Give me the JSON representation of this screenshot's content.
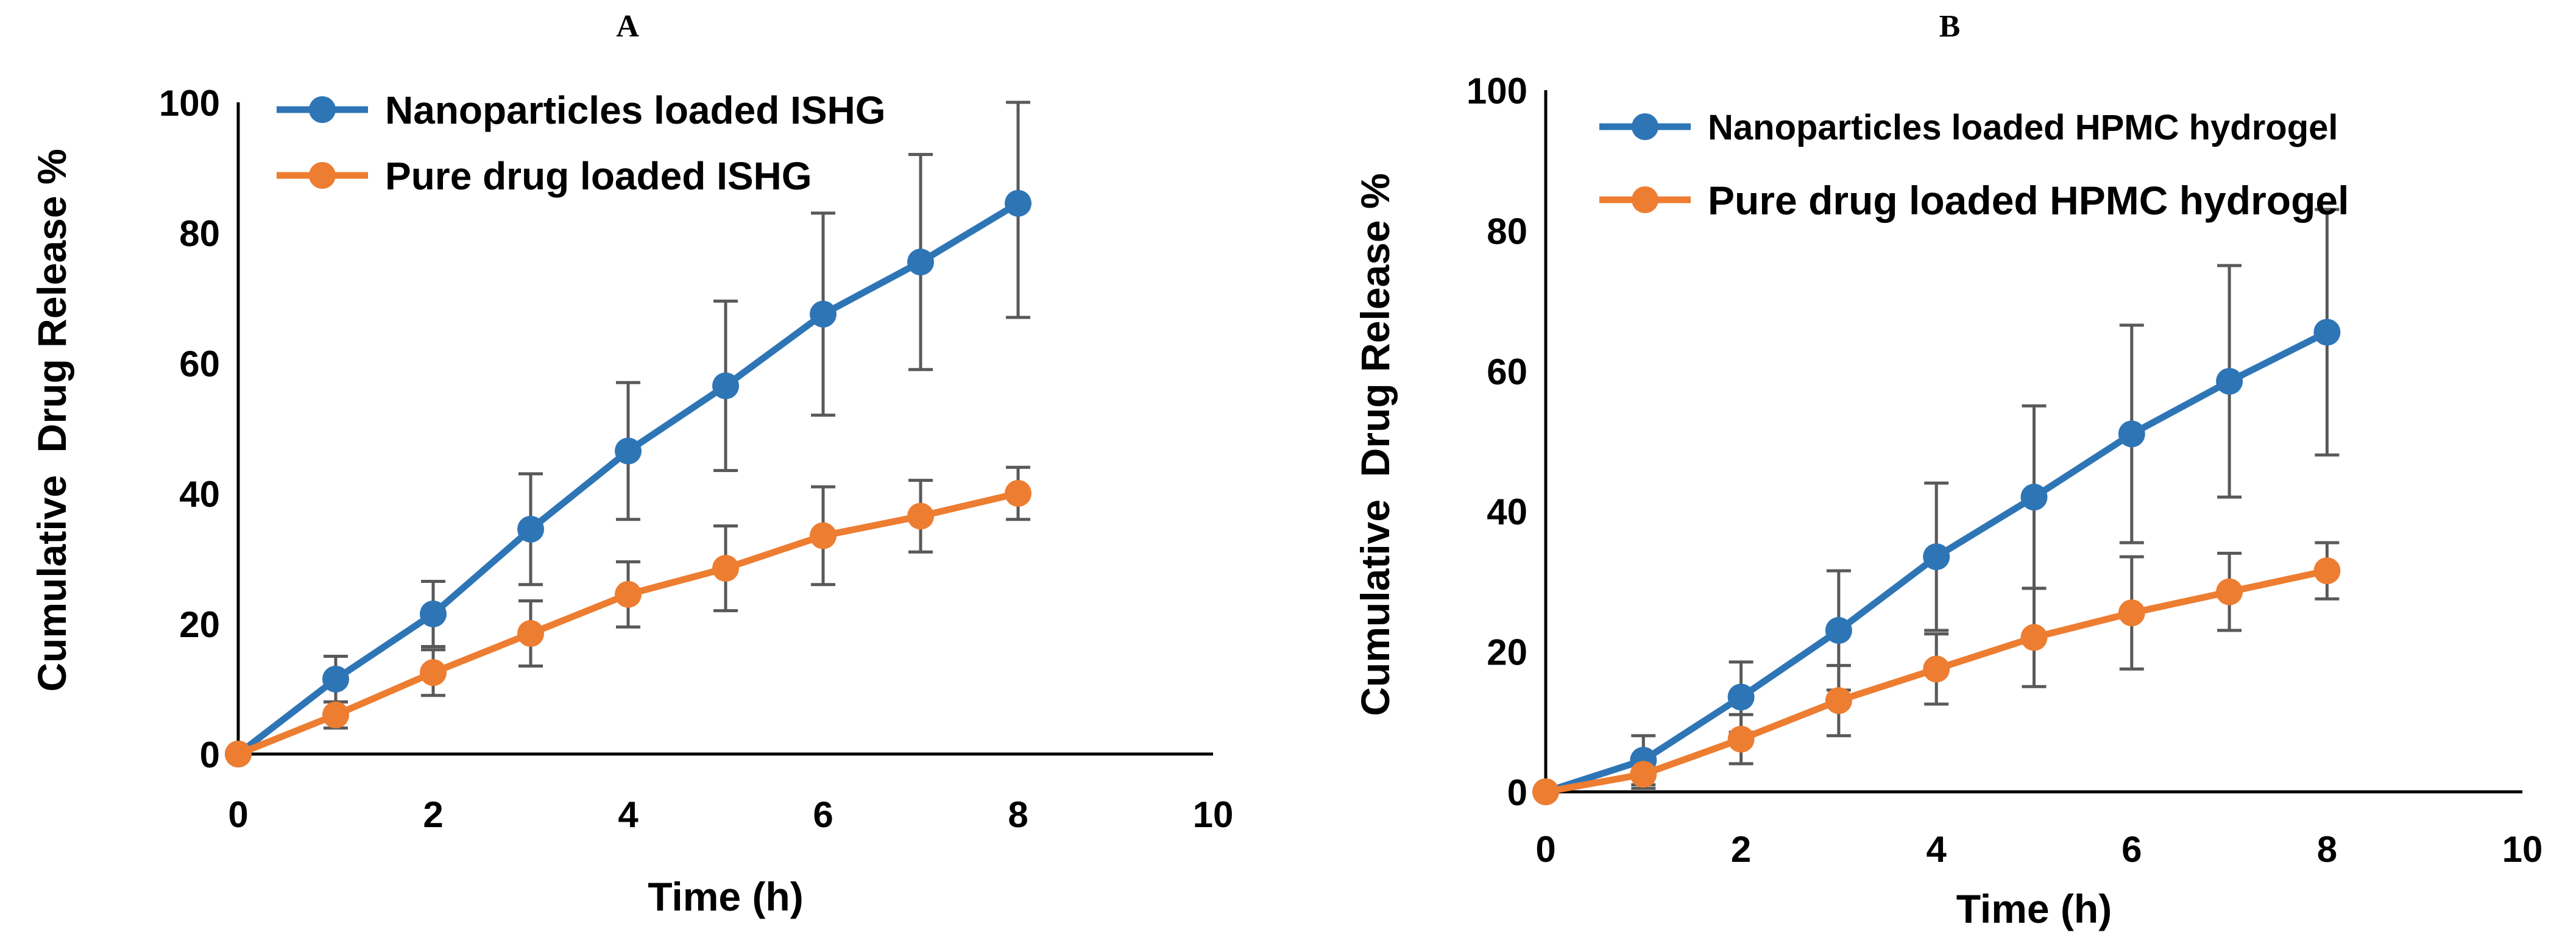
{
  "chart_data": [
    {
      "panel_label": "A",
      "type": "line",
      "xlabel": "Time (h)",
      "ylabel": "Cumulative  Drug Release %",
      "xlim": [
        0,
        10
      ],
      "ylim": [
        0,
        100
      ],
      "xticks": [
        0,
        2,
        4,
        6,
        8,
        10
      ],
      "yticks": [
        0,
        20,
        40,
        60,
        80,
        100
      ],
      "grid": false,
      "legend_position": "top-left",
      "series": [
        {
          "name": "Nanoparticles loaded ISHG",
          "color": "#2E75B6",
          "x": [
            0,
            1,
            2,
            3,
            4,
            5,
            6,
            7,
            8
          ],
          "y": [
            0,
            11.5,
            21.5,
            34.5,
            46.5,
            56.5,
            67.5,
            75.5,
            84.5
          ],
          "error": [
            0,
            3.5,
            5,
            8.5,
            10.5,
            13,
            15.5,
            16.5,
            17.5
          ]
        },
        {
          "name": "Pure drug loaded ISHG",
          "color": "#ED7D31",
          "x": [
            0,
            1,
            2,
            3,
            4,
            5,
            6,
            7,
            8
          ],
          "y": [
            0,
            6,
            12.5,
            18.5,
            24.5,
            28.5,
            33.5,
            36.5,
            40
          ],
          "error": [
            0,
            2,
            3.5,
            5,
            5,
            6.5,
            7.5,
            5.5,
            4
          ]
        }
      ]
    },
    {
      "panel_label": "B",
      "type": "line",
      "xlabel": "Time (h)",
      "ylabel": "Cumulative  Drug Release %",
      "xlim": [
        0,
        10
      ],
      "ylim": [
        0,
        100
      ],
      "xticks": [
        0,
        2,
        4,
        6,
        8,
        10
      ],
      "yticks": [
        0,
        20,
        40,
        60,
        80,
        100
      ],
      "grid": false,
      "legend_position": "top-left",
      "series": [
        {
          "name": "Nanoparticles loaded HPMC hydrogel",
          "color": "#2E75B6",
          "x": [
            0,
            1,
            2,
            3,
            4,
            5,
            6,
            7,
            8
          ],
          "y": [
            0,
            4.5,
            13.5,
            23,
            33.5,
            42,
            51,
            58.5,
            65.5
          ],
          "error": [
            0,
            3.5,
            5,
            8.5,
            10.5,
            13,
            15.5,
            16.5,
            17.5
          ]
        },
        {
          "name": "Pure drug loaded HPMC hydrogel",
          "color": "#ED7D31",
          "x": [
            0,
            1,
            2,
            3,
            4,
            5,
            6,
            7,
            8
          ],
          "y": [
            0,
            2.5,
            7.5,
            13,
            17.5,
            22,
            25.5,
            28.5,
            31.5
          ],
          "error": [
            0,
            2,
            3.5,
            5,
            5,
            7,
            8,
            5.5,
            4
          ]
        }
      ]
    }
  ]
}
